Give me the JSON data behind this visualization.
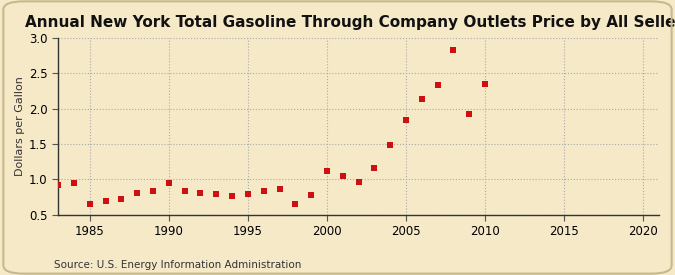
{
  "title": "Annual New York Total Gasoline Through Company Outlets Price by All Sellers",
  "ylabel": "Dollars per Gallon",
  "source": "Source: U.S. Energy Information Administration",
  "xlim": [
    1983,
    2021
  ],
  "ylim": [
    0.5,
    3.0
  ],
  "xticks": [
    1985,
    1990,
    1995,
    2000,
    2005,
    2010,
    2015,
    2020
  ],
  "yticks": [
    0.5,
    1.0,
    1.5,
    2.0,
    2.5,
    3.0
  ],
  "background_color": "#f5e9c8",
  "plot_bg_color": "#f5e9c8",
  "marker_color": "#cc1111",
  "years": [
    1983,
    1984,
    1985,
    1986,
    1987,
    1988,
    1989,
    1990,
    1991,
    1992,
    1993,
    1994,
    1995,
    1996,
    1997,
    1998,
    1999,
    2000,
    2001,
    2002,
    2003,
    2004,
    2005,
    2006,
    2007,
    2008,
    2009,
    2010
  ],
  "values": [
    0.92,
    0.95,
    0.65,
    0.69,
    0.72,
    0.8,
    0.83,
    0.95,
    0.83,
    0.8,
    0.79,
    0.76,
    0.79,
    0.83,
    0.86,
    0.65,
    0.78,
    1.12,
    1.04,
    0.96,
    1.16,
    1.48,
    1.84,
    2.14,
    2.33,
    2.83,
    1.92,
    2.35
  ],
  "title_fontsize": 11,
  "title_fontweight": "bold",
  "tick_fontsize": 8.5,
  "ylabel_fontsize": 8,
  "source_fontsize": 7.5
}
